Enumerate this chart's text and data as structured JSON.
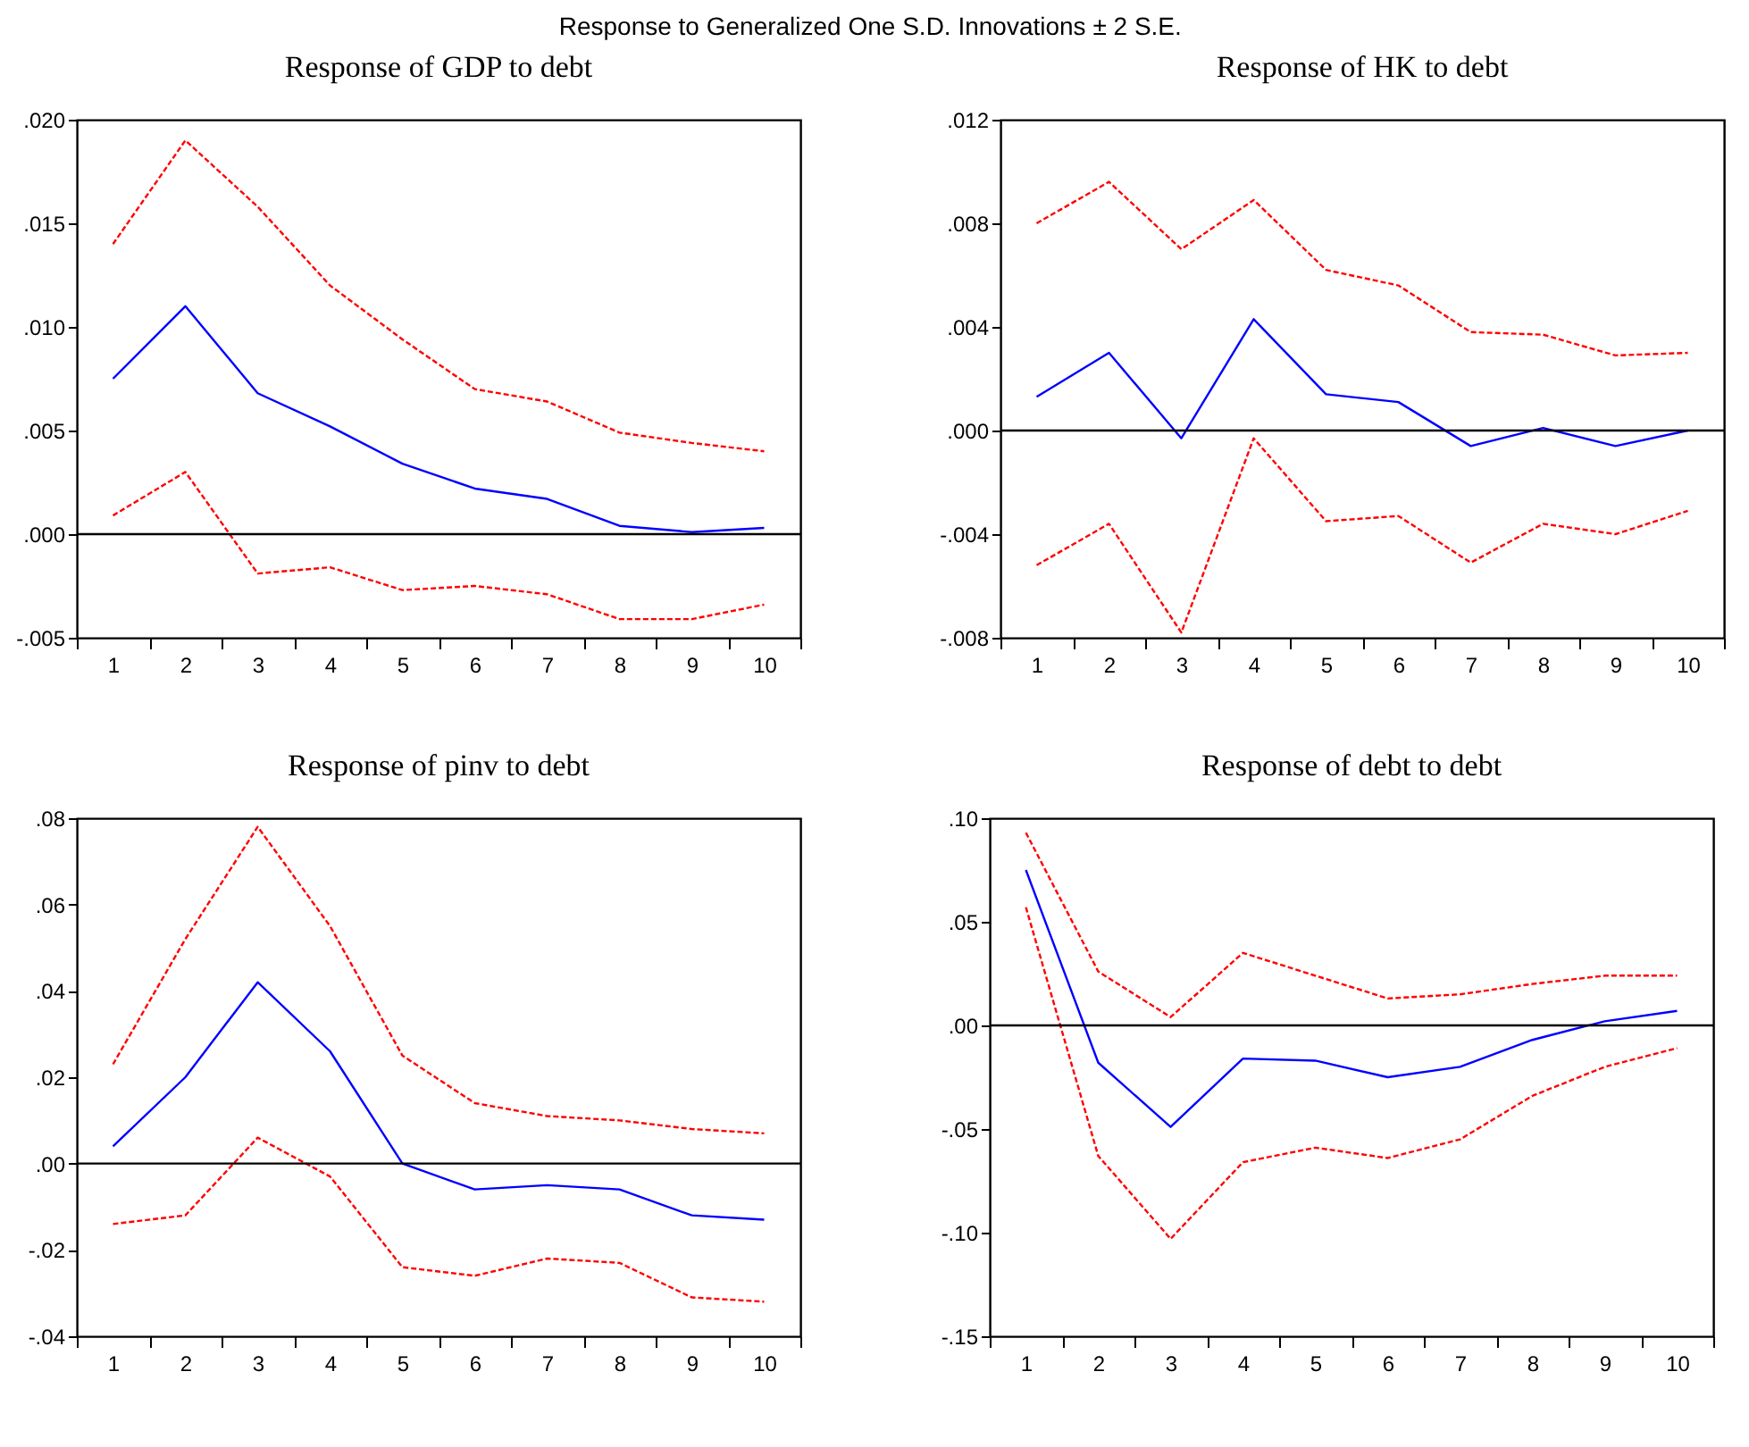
{
  "chart_data": [
    {
      "type": "line",
      "title": "Response of GDP to debt",
      "annotations": [
        "Response to Generalized One S.D. Innovations ± 2 S.E."
      ],
      "categories": [
        "1",
        "2",
        "3",
        "4",
        "5",
        "6",
        "7",
        "8",
        "9",
        "10"
      ],
      "ylim": [
        -0.005,
        0.02
      ],
      "yticks": [
        {
          "value": -0.005,
          "label": "-.005"
        },
        {
          "value": 0,
          "label": ".000"
        },
        {
          "value": 0.005,
          "label": ".005"
        },
        {
          "value": 0.01,
          "label": ".010"
        },
        {
          "value": 0.015,
          "label": ".015"
        },
        {
          "value": 0.02,
          "label": ".020"
        }
      ],
      "ref_lines": [
        {
          "axis": "y",
          "value": 0,
          "color": "#000000"
        }
      ],
      "series": [
        {
          "color": "#0000ff",
          "line_style": "solid",
          "values": [
            0.0075,
            0.011,
            0.0068,
            0.0052,
            0.0034,
            0.0022,
            0.0017,
            0.0004,
            0.0001,
            0.0003
          ]
        },
        {
          "color": "#ff0000",
          "line_style": "dashed",
          "values": [
            0.014,
            0.019,
            0.0158,
            0.012,
            0.0094,
            0.007,
            0.0064,
            0.0049,
            0.0044,
            0.004
          ]
        },
        {
          "color": "#ff0000",
          "line_style": "dashed",
          "values": [
            0.0009,
            0.003,
            -0.0019,
            -0.0016,
            -0.0027,
            -0.0025,
            -0.0029,
            -0.0041,
            -0.0041,
            -0.0034
          ]
        }
      ]
    },
    {
      "type": "line",
      "title": "Response of HK to debt",
      "categories": [
        "1",
        "2",
        "3",
        "4",
        "5",
        "6",
        "7",
        "8",
        "9",
        "10"
      ],
      "ylim": [
        -0.008,
        0.012
      ],
      "yticks": [
        {
          "value": -0.008,
          "label": "-.008"
        },
        {
          "value": -0.004,
          "label": "-.004"
        },
        {
          "value": 0,
          "label": ".000"
        },
        {
          "value": 0.004,
          "label": ".004"
        },
        {
          "value": 0.008,
          "label": ".008"
        },
        {
          "value": 0.012,
          "label": ".012"
        }
      ],
      "ref_lines": [
        {
          "axis": "y",
          "value": 0,
          "color": "#000000"
        }
      ],
      "series": [
        {
          "color": "#0000ff",
          "line_style": "solid",
          "values": [
            0.0013,
            0.003,
            -0.0003,
            0.0043,
            0.0014,
            0.0011,
            -0.0006,
            0.0001,
            -0.0006,
            0.0
          ]
        },
        {
          "color": "#ff0000",
          "line_style": "dashed",
          "values": [
            0.008,
            0.0096,
            0.007,
            0.0089,
            0.0062,
            0.0056,
            0.0038,
            0.0037,
            0.0029,
            0.003
          ]
        },
        {
          "color": "#ff0000",
          "line_style": "dashed",
          "values": [
            -0.0052,
            -0.0036,
            -0.0078,
            -0.0003,
            -0.0035,
            -0.0033,
            -0.0051,
            -0.0036,
            -0.004,
            -0.0031
          ]
        }
      ]
    },
    {
      "type": "line",
      "title": "Response of pinv to debt",
      "categories": [
        "1",
        "2",
        "3",
        "4",
        "5",
        "6",
        "7",
        "8",
        "9",
        "10"
      ],
      "ylim": [
        -0.04,
        0.08
      ],
      "yticks": [
        {
          "value": -0.04,
          "label": "-.04"
        },
        {
          "value": -0.02,
          "label": "-.02"
        },
        {
          "value": 0,
          "label": ".00"
        },
        {
          "value": 0.02,
          "label": ".02"
        },
        {
          "value": 0.04,
          "label": ".04"
        },
        {
          "value": 0.06,
          "label": ".06"
        },
        {
          "value": 0.08,
          "label": ".08"
        }
      ],
      "ref_lines": [
        {
          "axis": "y",
          "value": 0,
          "color": "#000000"
        }
      ],
      "series": [
        {
          "color": "#0000ff",
          "line_style": "solid",
          "values": [
            0.004,
            0.02,
            0.042,
            0.026,
            0.0,
            -0.006,
            -0.005,
            -0.006,
            -0.012,
            -0.013
          ]
        },
        {
          "color": "#ff0000",
          "line_style": "dashed",
          "values": [
            0.023,
            0.052,
            0.078,
            0.055,
            0.025,
            0.014,
            0.011,
            0.01,
            0.008,
            0.007
          ]
        },
        {
          "color": "#ff0000",
          "line_style": "dashed",
          "values": [
            -0.014,
            -0.012,
            0.006,
            -0.003,
            -0.024,
            -0.026,
            -0.022,
            -0.023,
            -0.031,
            -0.032
          ]
        }
      ]
    },
    {
      "type": "line",
      "title": "Response of debt to debt",
      "categories": [
        "1",
        "2",
        "3",
        "4",
        "5",
        "6",
        "7",
        "8",
        "9",
        "10"
      ],
      "ylim": [
        -0.15,
        0.1
      ],
      "yticks": [
        {
          "value": -0.15,
          "label": "-.15"
        },
        {
          "value": -0.1,
          "label": "-.10"
        },
        {
          "value": -0.05,
          "label": "-.05"
        },
        {
          "value": 0,
          "label": ".00"
        },
        {
          "value": 0.05,
          "label": ".05"
        },
        {
          "value": 0.1,
          "label": ".10"
        }
      ],
      "ref_lines": [
        {
          "axis": "y",
          "value": 0,
          "color": "#000000"
        }
      ],
      "series": [
        {
          "color": "#0000ff",
          "line_style": "solid",
          "values": [
            0.075,
            -0.018,
            -0.049,
            -0.016,
            -0.017,
            -0.025,
            -0.02,
            -0.007,
            0.002,
            0.007
          ]
        },
        {
          "color": "#ff0000",
          "line_style": "dashed",
          "values": [
            0.093,
            0.026,
            0.004,
            0.035,
            0.024,
            0.013,
            0.015,
            0.02,
            0.024,
            0.024
          ]
        },
        {
          "color": "#ff0000",
          "line_style": "dashed",
          "values": [
            0.057,
            -0.063,
            -0.103,
            -0.066,
            -0.059,
            -0.064,
            -0.055,
            -0.034,
            -0.02,
            -0.011
          ]
        }
      ]
    }
  ]
}
